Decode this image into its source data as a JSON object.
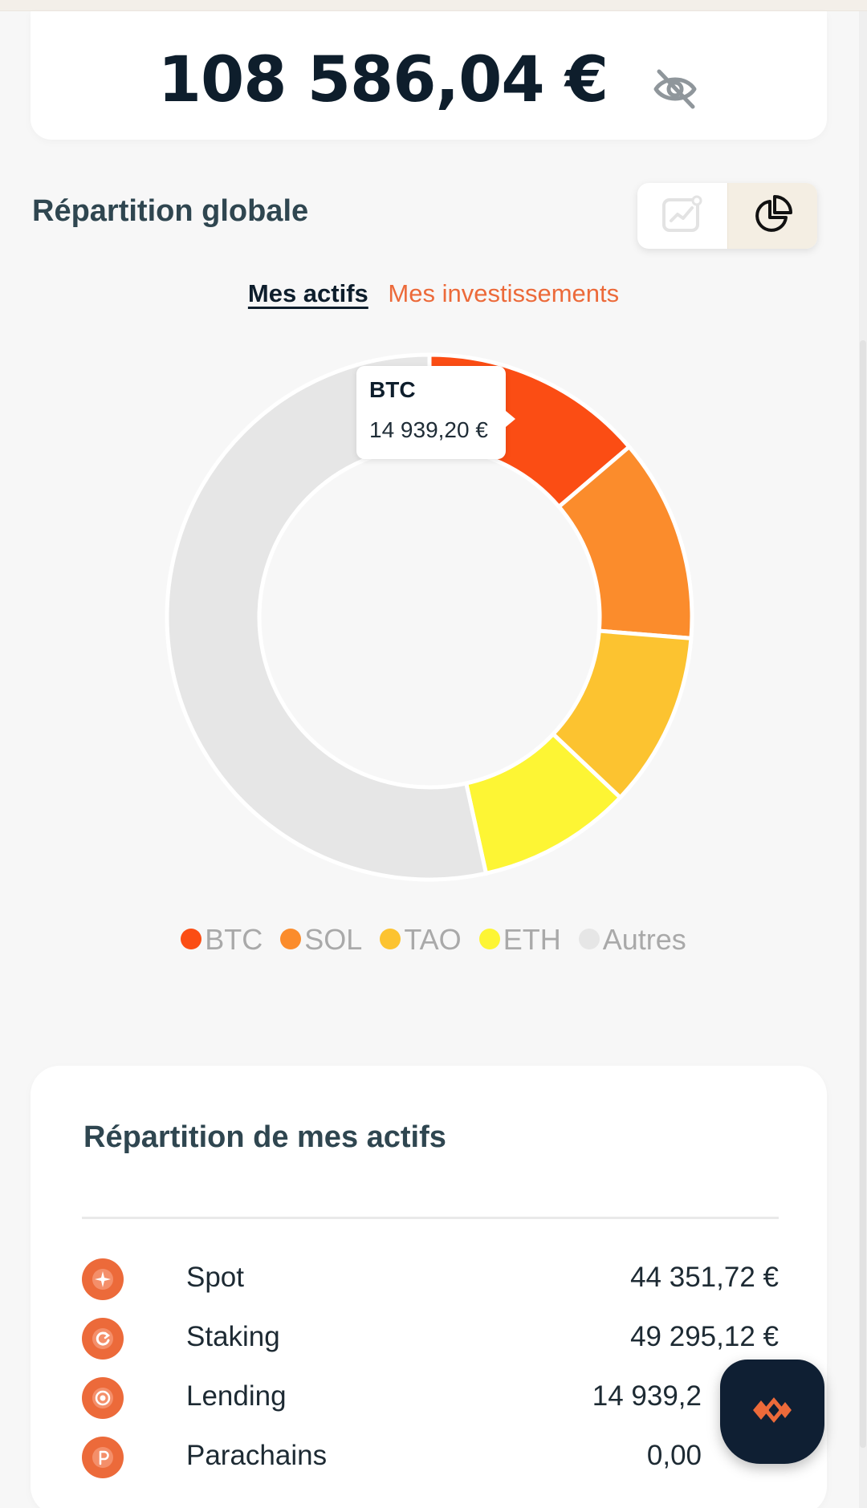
{
  "balance": {
    "amount": "108 586,04 €",
    "hide_icon": "eye-off-icon"
  },
  "allocation": {
    "title": "Répartition globale",
    "view_toggle": {
      "options": [
        "line-chart-icon",
        "pie-chart-icon"
      ],
      "active": "pie-chart-icon"
    },
    "tabs": [
      {
        "label": "Mes actifs",
        "active": true
      },
      {
        "label": "Mes investissements",
        "active": false
      }
    ],
    "tooltip": {
      "title": "BTC",
      "value": "14 939,20 €"
    },
    "legend": [
      {
        "label": "BTC",
        "color": "#fb4d14"
      },
      {
        "label": "SOL",
        "color": "#fb8c2c"
      },
      {
        "label": "TAO",
        "color": "#fcc330"
      },
      {
        "label": "ETH",
        "color": "#fdf534"
      },
      {
        "label": "Autres",
        "color": "#e6e6e6"
      }
    ]
  },
  "chart_data": {
    "type": "pie",
    "variant": "donut",
    "categories": [
      "BTC",
      "SOL",
      "TAO",
      "ETH",
      "Autres"
    ],
    "values": [
      14939.2,
      13600,
      11700,
      10300,
      58046.84
    ],
    "colors": [
      "#fb4d14",
      "#fb8c2c",
      "#fcc330",
      "#fdf534",
      "#e6e6e6"
    ]
  },
  "assets": {
    "title": "Répartition de mes actifs",
    "rows": [
      {
        "label": "Spot",
        "amount": "44 351,72 €",
        "icon": "sparkle-icon"
      },
      {
        "label": "Staking",
        "amount": "49 295,12 €",
        "icon": "refresh-icon"
      },
      {
        "label": "Lending",
        "amount": "14 939,2",
        "icon": "target-icon"
      },
      {
        "label": "Parachains",
        "amount": "0,00",
        "icon": "parachain-icon"
      }
    ]
  },
  "fab": {
    "icon": "app-logo-icon"
  }
}
